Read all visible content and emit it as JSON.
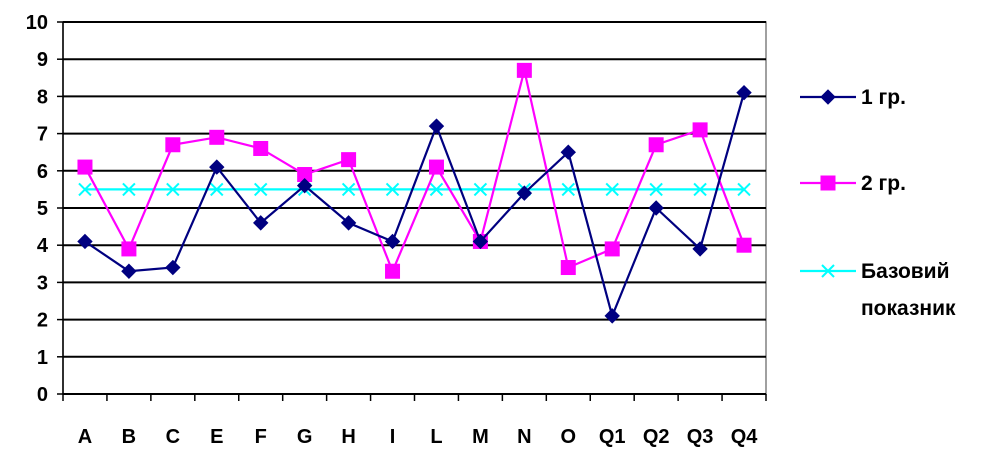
{
  "chart_data": {
    "type": "line",
    "categories": [
      "A",
      "B",
      "C",
      "E",
      "F",
      "G",
      "H",
      "I",
      "L",
      "M",
      "N",
      "O",
      "Q1",
      "Q2",
      "Q3",
      "Q4"
    ],
    "ylim": [
      0,
      10
    ],
    "yticks": [
      0,
      1,
      2,
      3,
      4,
      5,
      6,
      7,
      8,
      9,
      10
    ],
    "grid": "horizontal",
    "legend_position": "right",
    "series": [
      {
        "name": "1 гр.",
        "color": "#000080",
        "marker": "diamond",
        "values": [
          4.1,
          3.3,
          3.4,
          6.1,
          4.6,
          5.6,
          4.6,
          4.1,
          7.2,
          4.1,
          5.4,
          6.5,
          2.1,
          5.0,
          3.9,
          8.1
        ]
      },
      {
        "name": "2 гр.",
        "color": "#FF00FF",
        "marker": "square",
        "values": [
          6.1,
          3.9,
          6.7,
          6.9,
          6.6,
          5.9,
          6.3,
          3.3,
          6.1,
          4.1,
          8.7,
          3.4,
          3.9,
          6.7,
          7.1,
          4.0
        ]
      },
      {
        "name": "Базовий показник",
        "name_lines": [
          "Базовий",
          "показник"
        ],
        "color": "#00FFFF",
        "marker": "x",
        "values": [
          5.5,
          5.5,
          5.5,
          5.5,
          5.5,
          5.5,
          5.5,
          5.5,
          5.5,
          5.5,
          5.5,
          5.5,
          5.5,
          5.5,
          5.5,
          5.5
        ]
      }
    ]
  }
}
